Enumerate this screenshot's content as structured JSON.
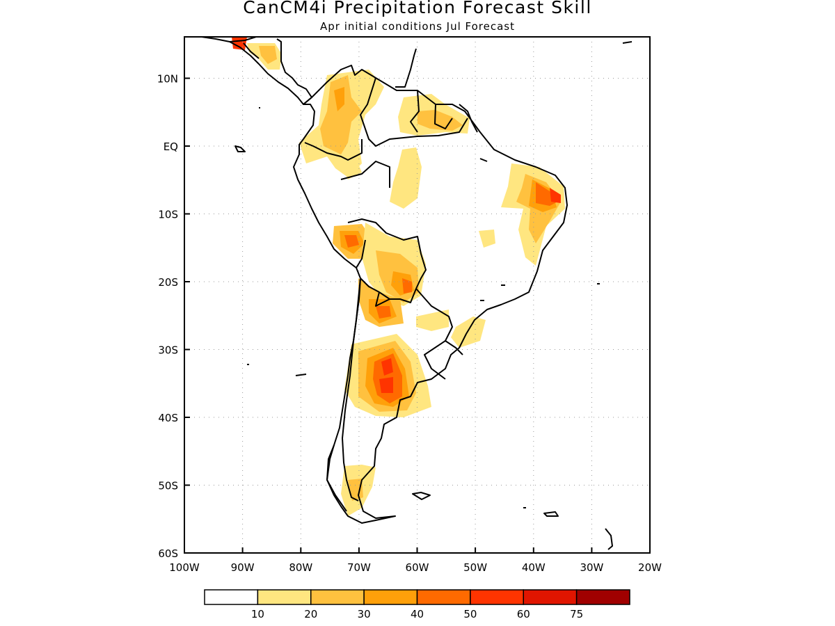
{
  "title": "CanCM4i Precipitation Forecast Skill",
  "subtitle": "Apr initial conditions  Jul Forecast",
  "axes": {
    "x_ticks": [
      "100W",
      "90W",
      "80W",
      "70W",
      "60W",
      "50W",
      "40W",
      "30W",
      "20W"
    ],
    "y_ticks": [
      "10N",
      "EQ",
      "10S",
      "20S",
      "30S",
      "40S",
      "50S",
      "60S"
    ]
  },
  "colorbar": {
    "colors": [
      "#ffffff",
      "#ffe680",
      "#ffc13f",
      "#ffa00a",
      "#ff6a00",
      "#ff3400",
      "#e01500",
      "#a00000"
    ],
    "labels": [
      "10",
      "20",
      "30",
      "40",
      "50",
      "60",
      "75"
    ]
  },
  "colors": {
    "gridline": "#999999",
    "coastline": "#000000"
  }
}
